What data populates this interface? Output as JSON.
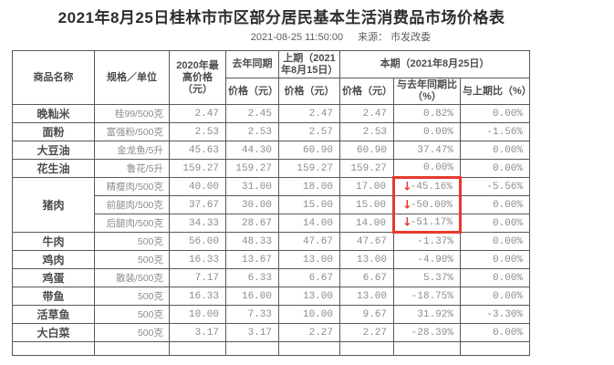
{
  "page": {
    "title": "2021年8月25日桂林市市区部分居民基本生活消费品市场价格表",
    "timestamp": "2021-08-25 11:50:00",
    "source": "来源： 市发改委"
  },
  "accent": {
    "highlight_red": "#e8392f",
    "grid_color": "#585858",
    "down_arrow": "↓"
  },
  "table": {
    "header": {
      "product": "商品名称",
      "spec": "规格／单位",
      "max_2020": "2020年最高价格（元）",
      "last_year_group": "去年同期",
      "last_year_price": "价格（元）",
      "prev_group": "上期（2021年8月15日）",
      "prev_price": "价格（元）",
      "current_group": "本期（2021年8月25日）",
      "current_price": "价格（元）",
      "yoy_change": "与去年同期比（%）",
      "pop_change": "与上期比（%）"
    },
    "rows": [
      {
        "product": "晚籼米",
        "rowspan": 1,
        "spec": "桂99/500克",
        "max_2020": "2.47",
        "last_year": "2.45",
        "prev": "2.47",
        "current": "2.47",
        "yoy": "0.82%",
        "pop": "0.00%",
        "arrow": false,
        "hl": ""
      },
      {
        "product": "面粉",
        "rowspan": 1,
        "spec": "富强粉/500克",
        "max_2020": "2.53",
        "last_year": "2.53",
        "prev": "2.57",
        "current": "2.53",
        "yoy": "0.00%",
        "pop": "-1.56%",
        "arrow": false,
        "hl": ""
      },
      {
        "product": "大豆油",
        "rowspan": 1,
        "spec": "金龙鱼/5升",
        "max_2020": "45.63",
        "last_year": "44.30",
        "prev": "60.90",
        "current": "60.90",
        "yoy": "37.47%",
        "pop": "0.00%",
        "arrow": false,
        "hl": ""
      },
      {
        "product": "花生油",
        "rowspan": 1,
        "spec": "鲁花/5升",
        "max_2020": "159.27",
        "last_year": "159.27",
        "prev": "159.27",
        "current": "159.27",
        "yoy": "0.00%",
        "pop": "0.00%",
        "arrow": false,
        "hl": ""
      },
      {
        "product": "猪肉",
        "rowspan": 3,
        "spec": "精瘦肉/500克",
        "max_2020": "40.00",
        "last_year": "31.00",
        "prev": "18.00",
        "current": "17.00",
        "yoy": "-45.16%",
        "pop": "-5.56%",
        "arrow": true,
        "hl": "top"
      },
      {
        "product": null,
        "rowspan": 1,
        "spec": "前腿肉/500克",
        "max_2020": "37.67",
        "last_year": "30.00",
        "prev": "15.00",
        "current": "15.00",
        "yoy": "-50.00%",
        "pop": "0.00%",
        "arrow": true,
        "hl": "mid"
      },
      {
        "product": null,
        "rowspan": 1,
        "spec": "后腿肉/500克",
        "max_2020": "34.33",
        "last_year": "28.67",
        "prev": "14.00",
        "current": "14.00",
        "yoy": "-51.17%",
        "pop": "0.00%",
        "arrow": true,
        "hl": "bot"
      },
      {
        "product": "牛肉",
        "rowspan": 1,
        "spec": "500克",
        "max_2020": "56.00",
        "last_year": "48.33",
        "prev": "47.67",
        "current": "47.67",
        "yoy": "-1.37%",
        "pop": "0.00%",
        "arrow": false,
        "hl": ""
      },
      {
        "product": "鸡肉",
        "rowspan": 1,
        "spec": "500克",
        "max_2020": "16.33",
        "last_year": "13.67",
        "prev": "13.00",
        "current": "13.00",
        "yoy": "-4.90%",
        "pop": "0.00%",
        "arrow": false,
        "hl": ""
      },
      {
        "product": "鸡蛋",
        "rowspan": 1,
        "spec": "散装/500克",
        "max_2020": "7.17",
        "last_year": "6.33",
        "prev": "6.67",
        "current": "6.67",
        "yoy": "5.37%",
        "pop": "0.00%",
        "arrow": false,
        "hl": ""
      },
      {
        "product": "带鱼",
        "rowspan": 1,
        "spec": "500克",
        "max_2020": "16.33",
        "last_year": "16.00",
        "prev": "13.00",
        "current": "13.00",
        "yoy": "-18.75%",
        "pop": "0.00%",
        "arrow": false,
        "hl": ""
      },
      {
        "product": "活草鱼",
        "rowspan": 1,
        "spec": "500克",
        "max_2020": "10.00",
        "last_year": "7.33",
        "prev": "10.00",
        "current": "9.67",
        "yoy": "31.92%",
        "pop": "-3.30%",
        "arrow": false,
        "hl": ""
      },
      {
        "product": "大白菜",
        "rowspan": 1,
        "spec": "500克",
        "max_2020": "3.17",
        "last_year": "3.17",
        "prev": "2.27",
        "current": "2.27",
        "yoy": "-28.39%",
        "pop": "0.00%",
        "arrow": false,
        "hl": ""
      }
    ],
    "partial_row": true
  }
}
